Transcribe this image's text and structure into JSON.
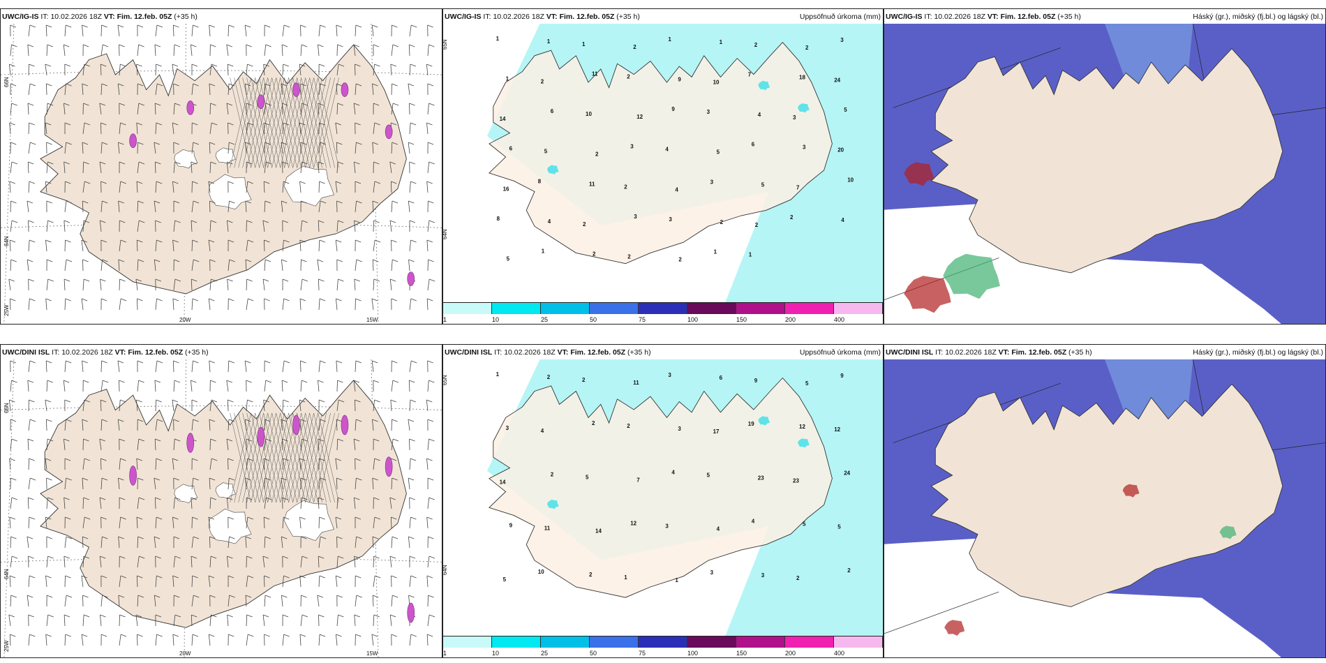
{
  "colors": {
    "land": "#f1e4d6",
    "land_panel2": "#fdf0e4",
    "cyan_light": "#b5f5f5",
    "cyan_mid": "#5fe3e8",
    "cloud_blue": "#5a5fc7",
    "cloud_light": "#7fa8e6",
    "cloud_white": "#ffffff",
    "precip_magenta": "#cc55cc",
    "red_cloud": "#b02020",
    "green_cloud": "#40b070"
  },
  "rows": [
    {
      "panels": [
        {
          "model": "UWC/IG-IS",
          "it_label": "IT:",
          "it_value": "10.02.2026 18Z",
          "vt_label": "VT:",
          "vt_value": "Fim. 12.feb. 05Z",
          "offset": "(+35 h)",
          "right_title": "",
          "lat_labels": [
            "66N",
            "64N"
          ],
          "lon_labels": [
            "25W",
            "20W",
            "15W"
          ],
          "kind": "wind"
        },
        {
          "model": "UWC/IG-IS",
          "it_label": "IT:",
          "it_value": "10.02.2026 18Z",
          "vt_label": "VT:",
          "vt_value": "Fim. 12.feb. 05Z",
          "offset": "(+35 h)",
          "right_title": "Uppsöfnuð úrkoma (mm)",
          "lat_labels": [
            "65N",
            "64N"
          ],
          "kind": "precip"
        },
        {
          "model": "UWC/IG-IS",
          "it_label": "IT:",
          "it_value": "10.02.2026 18Z",
          "vt_label": "VT:",
          "vt_value": "Fim. 12.feb. 05Z",
          "offset": "(+35 h)",
          "right_title": "Háský (gr.), miðský (fj.bl.) og lágský (bl.)",
          "kind": "cloud"
        }
      ]
    },
    {
      "panels": [
        {
          "model": "UWC/DINI ISL",
          "it_label": "IT:",
          "it_value": "10.02.2026 18Z",
          "vt_label": "VT:",
          "vt_value": "Fim. 12.feb. 05Z",
          "offset": "(+35 h)",
          "right_title": "",
          "lat_labels": [
            "66N",
            "64N"
          ],
          "lon_labels": [
            "25W",
            "20W",
            "15W"
          ],
          "kind": "wind"
        },
        {
          "model": "UWC/DINI ISL",
          "it_label": "IT:",
          "it_value": "10.02.2026 18Z",
          "vt_label": "VT:",
          "vt_value": "Fim. 12.feb. 05Z",
          "offset": "(+35 h)",
          "right_title": "Uppsöfnuð úrkoma (mm)",
          "lat_labels": [
            "65N",
            "64N"
          ],
          "kind": "precip"
        },
        {
          "model": "UWC/DINI ISL",
          "it_label": "IT:",
          "it_value": "10.02.2026 18Z",
          "vt_label": "VT:",
          "vt_value": "Fim. 12.feb. 05Z",
          "offset": "(+35 h)",
          "right_title": "Háský (gr.), miðský (fj.bl.) og lágský (bl.)",
          "kind": "cloud"
        }
      ]
    }
  ],
  "precip_legend": {
    "ticks": [
      "1",
      "10",
      "25",
      "50",
      "75",
      "100",
      "150",
      "200",
      "400"
    ],
    "colors": [
      "#c8fafa",
      "#00e8f0",
      "#00c0e8",
      "#3a70e8",
      "#2b2fb8",
      "#6a0a5a",
      "#b0108a",
      "#f020b0",
      "#f7b8f0"
    ]
  },
  "precip_values_top": [
    "1",
    "1",
    "1",
    "2",
    "1",
    "1",
    "2",
    "2",
    "3",
    "1",
    "2",
    "11",
    "2",
    "9",
    "10",
    "7",
    "18",
    "24",
    "14",
    "6",
    "10",
    "12",
    "9",
    "3",
    "4",
    "3",
    "5",
    "6",
    "5",
    "2",
    "3",
    "4",
    "5",
    "6",
    "3",
    "20",
    "16",
    "8",
    "11",
    "2",
    "4",
    "3",
    "5",
    "7",
    "10",
    "8",
    "4",
    "2",
    "3",
    "3",
    "2",
    "2",
    "2",
    "4",
    "5",
    "1",
    "2",
    "2",
    "2",
    "1",
    "1"
  ],
  "precip_values_bottom": [
    "1",
    "2",
    "2",
    "11",
    "3",
    "6",
    "9",
    "5",
    "9",
    "3",
    "4",
    "2",
    "2",
    "3",
    "17",
    "19",
    "12",
    "12",
    "14",
    "2",
    "5",
    "7",
    "4",
    "5",
    "23",
    "23",
    "24",
    "9",
    "11",
    "14",
    "12",
    "3",
    "4",
    "4",
    "5",
    "5",
    "5",
    "10",
    "2",
    "1",
    "1",
    "3",
    "3",
    "2",
    "2"
  ]
}
